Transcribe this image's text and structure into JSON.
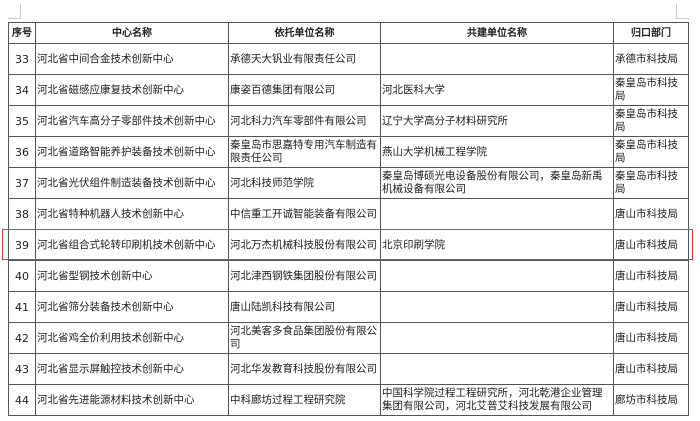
{
  "headers": [
    "序号",
    "中心名称",
    "依托单位名称",
    "共建单位名称",
    "归口部门"
  ],
  "rows": [
    [
      "33",
      "河北省中间合金技术创新中心",
      "承德天大钒业有限责任公司",
      "",
      "承德市科技局"
    ],
    [
      "34",
      "河北省磁感应康复技术创新中心",
      "康姿百德集团有限公司",
      "河北医科大学",
      "秦皇岛市科技局"
    ],
    [
      "35",
      "河北省汽车高分子零部件技术创新中心",
      "河北科力汽车零部件有限公司",
      "辽宁大学高分子材料研究所",
      "秦皇岛市科技局"
    ],
    [
      "36",
      "河北省道路智能养护装备技术创新中心",
      "秦皇岛市思嘉特专用汽车制造有限责任公司",
      "燕山大学机械工程学院",
      "秦皇岛市科技局"
    ],
    [
      "37",
      "河北省光伏组件制造装备技术创新中心",
      "河北科技师范学院",
      "秦皇岛博硕光电设备股份有限公司，秦皇岛新禹机械设备有限公司",
      "秦皇岛市科技局"
    ],
    [
      "38",
      "河北省特种机器人技术创新中心",
      "中信重工开诚智能装备有限公司",
      "",
      "唐山市科技局"
    ],
    [
      "39",
      "河北省组合式轮转印刷机技术创新中心",
      "河北万杰机械科技股份有限公司",
      "北京印刷学院",
      "唐山市科技局"
    ],
    [
      "40",
      "河北省型钢技术创新中心",
      "河北津西钢铁集团股份有限公司",
      "",
      "唐山市科技局"
    ],
    [
      "41",
      "河北省筛分装备技术创新中心",
      "唐山陆凯科技有限公司",
      "",
      "唐山市科技局"
    ],
    [
      "42",
      "河北省鸡全价利用技术创新中心",
      "河北美客多食品集团股份有限公司",
      "",
      "唐山市科技局"
    ],
    [
      "43",
      "河北省显示屏触控技术创新中心",
      "河北华发教育科技股份有限公司",
      "",
      "唐山市科技局"
    ],
    [
      "44",
      "河北省先进能源材料技术创新中心",
      "中科廊坊过程工程研究院",
      "中国科学院过程工程研究所，河北乾港企业管理集团有限公司，河北艾普艾科技发展有限公司",
      "廊坊市科技局"
    ]
  ],
  "highlight_color": "#e53935"
}
